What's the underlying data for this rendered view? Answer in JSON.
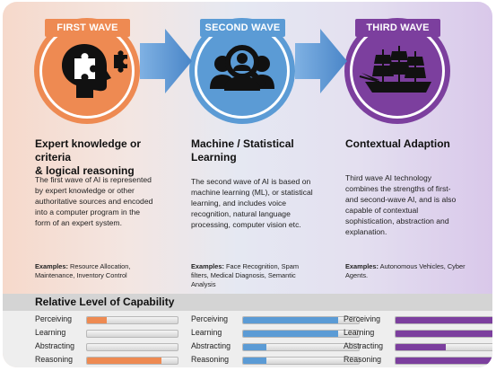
{
  "waves": [
    {
      "label": "FIRST WAVE",
      "color": "#ee8a52",
      "icon": "head-puzzle-icon",
      "heading_line1": "Expert knowledge or criteria",
      "heading_line2": "& logical reasoning",
      "desc_lines": [
        "The first wave of AI is represented",
        "by expert knowledge or other",
        "authoritative sources and encoded",
        "into a computer program in the",
        "form of an expert system."
      ],
      "examples_label": "Examples:",
      "examples_line1": "Resource Allocation,",
      "examples_line2": "Maintenance, Inventory Control",
      "examples_line3": ""
    },
    {
      "label": "SECOND WAVE",
      "color": "#5b9bd5",
      "icon": "people-magnifier-icon",
      "heading_line1": "Machine / Statistical",
      "heading_line2": "Learning",
      "desc_lines": [
        "The second wave of AI is based on",
        "machine learning (ML), or statistical",
        "learning, and includes voice",
        "recognition, natural language",
        "processing, computer vision etc."
      ],
      "examples_label": "Examples:",
      "examples_line1": "Face Recognition, Spam",
      "examples_line2": "filters, Medical Diagnosis, Semantic",
      "examples_line3": "Analysis"
    },
    {
      "label": "THIRD WAVE",
      "color": "#7c3f9e",
      "icon": "sailing-ship-icon",
      "heading_line1": "Contextual Adaption",
      "heading_line2": "",
      "desc_lines": [
        "Third wave AI technology",
        "combines the strengths of first-",
        "and second-wave AI, and is also",
        "capable of contextual",
        "sophistication, abstraction and",
        "explanation."
      ],
      "examples_label": "Examples:",
      "examples_line1": "Autonomous Vehicles, Cyber",
      "examples_line2": "Agents.",
      "examples_line3": ""
    }
  ],
  "capability": {
    "title": "Relative Level of Capability",
    "rows": [
      "Perceiving",
      "Learning",
      "Abstracting",
      "Reasoning"
    ],
    "levels": [
      [
        0.22,
        0.0,
        0.0,
        0.82
      ],
      [
        0.82,
        0.82,
        0.2,
        0.2
      ],
      [
        0.82,
        0.82,
        0.42,
        0.82
      ]
    ]
  }
}
